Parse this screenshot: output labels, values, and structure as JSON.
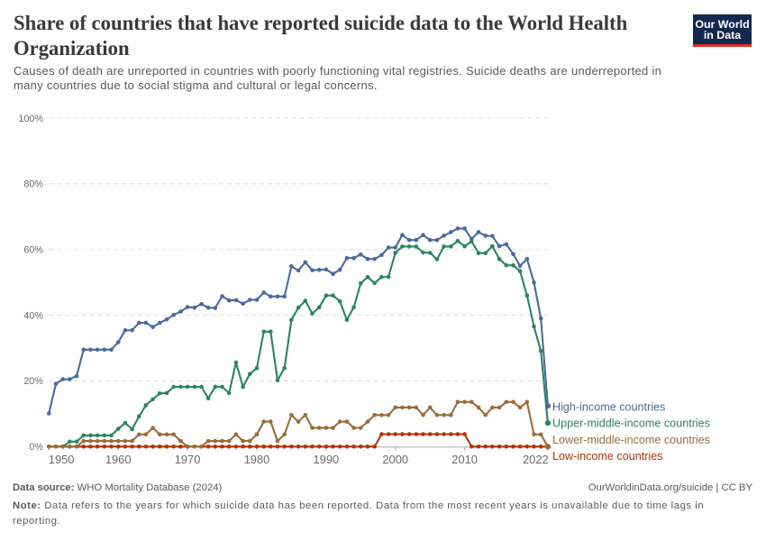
{
  "header": {
    "title": "Share of countries that have reported suicide data to the World Health Organization",
    "subtitle": "Causes of death are unreported in countries with poorly functioning vital registries. Suicide deaths are underreported in many countries due to social stigma and cultural or legal concerns."
  },
  "logo": {
    "line1": "Our World",
    "line2": "in Data",
    "background_color": "#12284D",
    "accent_color": "#DF2C27",
    "text_color": "#ffffff"
  },
  "chart_data": {
    "type": "line",
    "title": "Share of countries that have reported suicide data to the World Health Organization",
    "xlabel": "",
    "ylabel": "",
    "xlim": [
      1950,
      2022
    ],
    "ylim": [
      0,
      100
    ],
    "grid": true,
    "legend_position": "right-of-line-ends",
    "x_ticks": [
      1950,
      1960,
      1970,
      1980,
      1990,
      2000,
      2010,
      2022
    ],
    "x_tick_labels": [
      "1950",
      "1960",
      "1970",
      "1980",
      "1990",
      "2000",
      "2010",
      "2022"
    ],
    "y_ticks": [
      0,
      20,
      40,
      60,
      80,
      100
    ],
    "y_tick_labels": [
      "0%",
      "20%",
      "40%",
      "60%",
      "80%",
      "100%"
    ],
    "x": [
      1950,
      1951,
      1952,
      1953,
      1954,
      1955,
      1956,
      1957,
      1958,
      1959,
      1960,
      1961,
      1962,
      1963,
      1964,
      1965,
      1966,
      1967,
      1968,
      1969,
      1970,
      1971,
      1972,
      1973,
      1974,
      1975,
      1976,
      1977,
      1978,
      1979,
      1980,
      1981,
      1982,
      1983,
      1984,
      1985,
      1986,
      1987,
      1988,
      1989,
      1990,
      1991,
      1992,
      1993,
      1994,
      1995,
      1996,
      1997,
      1998,
      1999,
      2000,
      2001,
      2002,
      2003,
      2004,
      2005,
      2006,
      2007,
      2008,
      2009,
      2010,
      2011,
      2012,
      2013,
      2014,
      2015,
      2016,
      2017,
      2018,
      2019,
      2020,
      2021,
      2022
    ],
    "unit": "%",
    "series": [
      {
        "name": "High-income countries",
        "color": "#4C6A9C",
        "values": [
          10.1,
          19.1,
          20.5,
          20.5,
          21.5,
          29.5,
          29.5,
          29.5,
          29.5,
          29.5,
          31.8,
          35.4,
          35.4,
          37.7,
          37.7,
          36.4,
          37.7,
          38.7,
          40.1,
          41.1,
          42.5,
          42.3,
          43.4,
          42.3,
          42.2,
          45.8,
          44.5,
          44.6,
          43.5,
          44.7,
          44.7,
          46.9,
          45.7,
          45.7,
          45.7,
          54.9,
          53.6,
          56.1,
          53.7,
          53.8,
          53.9,
          52.6,
          53.8,
          57.4,
          57.4,
          58.5,
          57.1,
          57.1,
          58.3,
          60.6,
          60.6,
          64.4,
          62.9,
          62.9,
          64.4,
          62.9,
          62.9,
          64.2,
          65.3,
          66.4,
          66.4,
          63.2,
          65.3,
          64.2,
          64.1,
          61.0,
          61.6,
          58.6,
          55.0,
          57.1,
          50.0,
          39.0,
          12.4
        ]
      },
      {
        "name": "Upper-middle-income countries",
        "color": "#2C8465",
        "values": [
          0,
          0,
          0,
          1.5,
          1.5,
          3.4,
          3.4,
          3.4,
          3.4,
          3.4,
          5.4,
          7.2,
          5.3,
          9.2,
          12.6,
          14.4,
          16.2,
          16.3,
          18.2,
          18.2,
          18.2,
          18.2,
          18.2,
          14.7,
          18.2,
          18.2,
          16.3,
          25.6,
          18.2,
          22.1,
          23.9,
          35.0,
          35.0,
          20.2,
          23.9,
          38.6,
          42.3,
          44.4,
          40.5,
          42.4,
          46.0,
          46.0,
          44.2,
          38.6,
          42.4,
          49.7,
          51.6,
          49.8,
          51.6,
          51.7,
          59.0,
          60.9,
          60.9,
          60.9,
          59.1,
          59.0,
          57.0,
          60.9,
          60.9,
          62.6,
          61.0,
          62.5,
          58.9,
          58.9,
          61.0,
          57.1,
          55.2,
          55.2,
          53.4,
          46.0,
          36.6,
          29.1,
          7.2
        ]
      },
      {
        "name": "Lower-middle-income countries",
        "color": "#996D39",
        "values": [
          0,
          0,
          0,
          0,
          0,
          1.7,
          1.7,
          1.7,
          1.7,
          1.7,
          1.7,
          1.7,
          1.7,
          3.7,
          3.7,
          5.7,
          3.7,
          3.7,
          3.7,
          1.7,
          0,
          0,
          0,
          1.7,
          1.7,
          1.7,
          1.7,
          3.7,
          1.7,
          1.7,
          3.7,
          7.6,
          7.6,
          1.7,
          3.7,
          9.6,
          7.6,
          9.6,
          5.7,
          5.7,
          5.7,
          5.7,
          7.6,
          7.6,
          5.7,
          5.7,
          7.6,
          9.6,
          9.6,
          9.6,
          11.9,
          11.9,
          11.9,
          11.9,
          9.6,
          11.9,
          9.6,
          9.6,
          9.6,
          13.6,
          13.6,
          13.6,
          11.9,
          9.6,
          11.9,
          11.9,
          13.6,
          13.6,
          11.9,
          13.6,
          3.7,
          3.7,
          0
        ]
      },
      {
        "name": "Low-income countries",
        "color": "#B13507",
        "values": [
          0,
          0,
          0,
          0,
          0,
          0,
          0,
          0,
          0,
          0,
          0,
          0,
          0,
          0,
          0,
          0,
          0,
          0,
          0,
          0,
          0,
          0,
          0,
          0,
          0,
          0,
          0,
          0,
          0,
          0,
          0,
          0,
          0,
          0,
          0,
          0,
          0,
          0,
          0,
          0,
          0,
          0,
          0,
          0,
          0,
          0,
          0,
          0,
          3.8,
          3.8,
          3.8,
          3.8,
          3.8,
          3.8,
          3.8,
          3.8,
          3.8,
          3.8,
          3.8,
          3.8,
          3.8,
          0,
          0,
          0,
          0,
          0,
          0,
          0,
          0,
          0,
          0,
          0,
          0
        ]
      }
    ]
  },
  "footer": {
    "datasource_label": "Data source:",
    "datasource": "WHO Mortality Database (2024)",
    "credit": "OurWorldinData.org/suicide | CC BY",
    "note_label": "Note:",
    "note": "Data refers to the years for which suicide data has been reported. Data from the most recent years is unavailable due to time lags in reporting."
  }
}
